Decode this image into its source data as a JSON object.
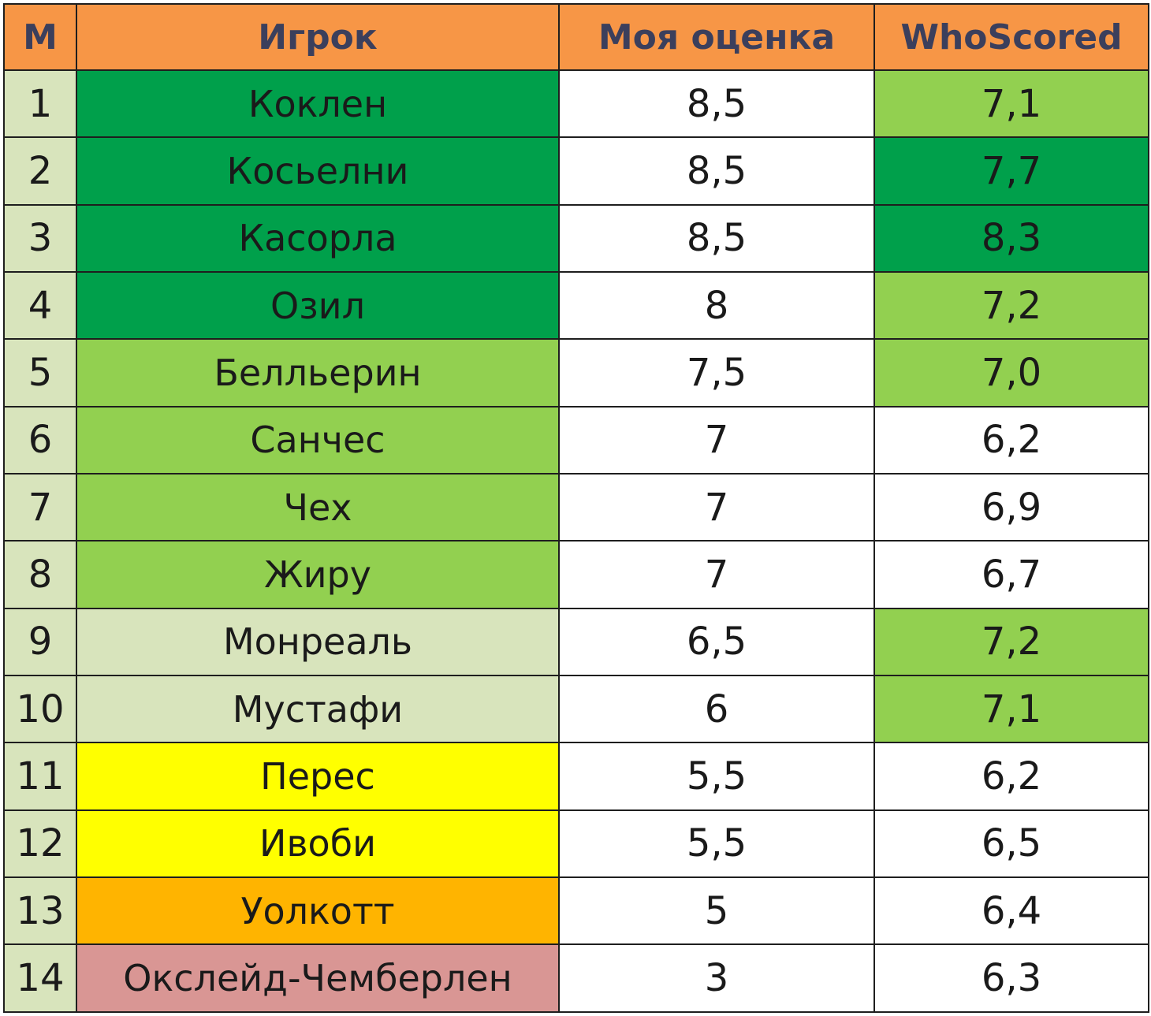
{
  "columns": [
    "М",
    "Игрок",
    "Моя оценка",
    "WhoScored"
  ],
  "colors": {
    "dark_green": "#00a04b",
    "light_green": "#92d050",
    "pale": "#d8e4bc",
    "yellow": "#ffff00",
    "orange": "#ffb400",
    "pink": "#d99694",
    "white": "#ffffff",
    "header": "#f79646"
  },
  "rows": [
    {
      "n": "1",
      "player": "Коклен",
      "mine": "8,5",
      "ws": "7,1",
      "player_color": "#00a04b",
      "ws_color": "#92d050"
    },
    {
      "n": "2",
      "player": "Косьелни",
      "mine": "8,5",
      "ws": "7,7",
      "player_color": "#00a04b",
      "ws_color": "#00a04b"
    },
    {
      "n": "3",
      "player": "Касорла",
      "mine": "8,5",
      "ws": "8,3",
      "player_color": "#00a04b",
      "ws_color": "#00a04b"
    },
    {
      "n": "4",
      "player": "Озил",
      "mine": "8",
      "ws": "7,2",
      "player_color": "#00a04b",
      "ws_color": "#92d050"
    },
    {
      "n": "5",
      "player": "Белльерин",
      "mine": "7,5",
      "ws": "7,0",
      "player_color": "#92d050",
      "ws_color": "#92d050"
    },
    {
      "n": "6",
      "player": "Санчес",
      "mine": "7",
      "ws": "6,2",
      "player_color": "#92d050",
      "ws_color": "#ffffff"
    },
    {
      "n": "7",
      "player": "Чех",
      "mine": "7",
      "ws": "6,9",
      "player_color": "#92d050",
      "ws_color": "#ffffff"
    },
    {
      "n": "8",
      "player": "Жиру",
      "mine": "7",
      "ws": "6,7",
      "player_color": "#92d050",
      "ws_color": "#ffffff"
    },
    {
      "n": "9",
      "player": "Монреаль",
      "mine": "6,5",
      "ws": "7,2",
      "player_color": "#d8e4bc",
      "ws_color": "#92d050"
    },
    {
      "n": "10",
      "player": "Мустафи",
      "mine": "6",
      "ws": "7,1",
      "player_color": "#d8e4bc",
      "ws_color": "#92d050"
    },
    {
      "n": "11",
      "player": "Перес",
      "mine": "5,5",
      "ws": "6,2",
      "player_color": "#ffff00",
      "ws_color": "#ffffff"
    },
    {
      "n": "12",
      "player": "Ивоби",
      "mine": "5,5",
      "ws": "6,5",
      "player_color": "#ffff00",
      "ws_color": "#ffffff"
    },
    {
      "n": "13",
      "player": "Уолкотт",
      "mine": "5",
      "ws": "6,4",
      "player_color": "#ffb400",
      "ws_color": "#ffffff"
    },
    {
      "n": "14",
      "player": "Окслейд-Чемберлен",
      "mine": "3",
      "ws": "6,3",
      "player_color": "#d99694",
      "ws_color": "#ffffff"
    }
  ]
}
